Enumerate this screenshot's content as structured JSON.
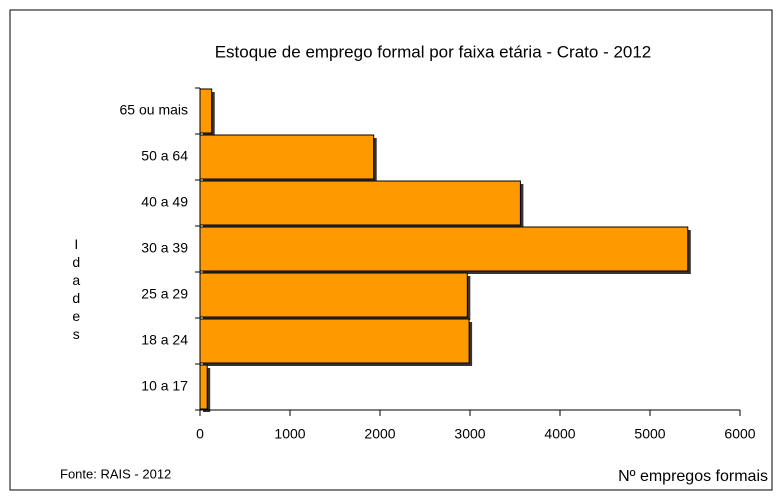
{
  "chart_data": {
    "type": "hbar",
    "title": "Estoque de emprego formal por faixa etária - Crato - 2012",
    "categories": [
      "65 ou mais",
      "50 a 64",
      "40 a 49",
      "30 a 39",
      "25 a 29",
      "18 a 24",
      "10 a 17"
    ],
    "values": [
      130,
      1930,
      3560,
      5420,
      2970,
      2990,
      80
    ],
    "color": "#ff9900",
    "xlim": [
      0,
      6000
    ],
    "xticks": [
      0,
      1000,
      2000,
      3000,
      4000,
      5000,
      6000
    ],
    "ylabel": "Idades",
    "xlabel": "Nº empregos formais",
    "source": "Fonte: RAIS - 2012"
  }
}
